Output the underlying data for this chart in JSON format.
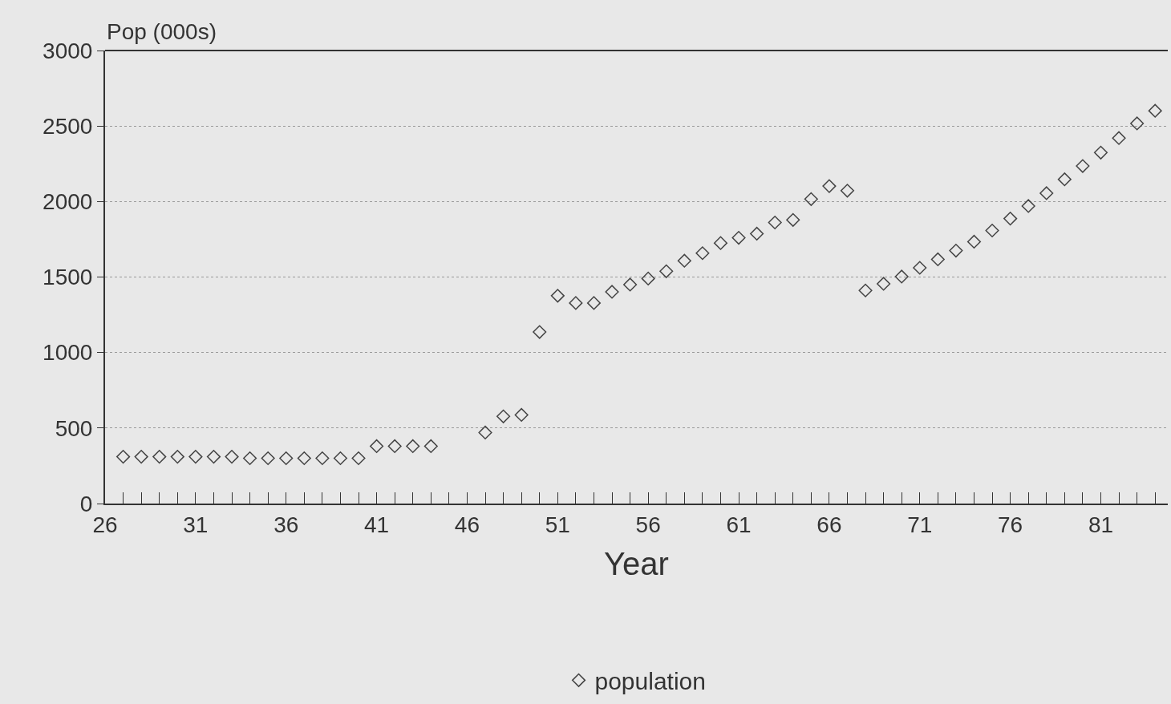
{
  "chart_data": {
    "type": "scatter",
    "xlabel": "Year",
    "ylabel": "Pop (000s)",
    "x": [
      27,
      28,
      29,
      30,
      31,
      32,
      33,
      34,
      35,
      36,
      37,
      38,
      39,
      40,
      41,
      42,
      43,
      44,
      47,
      48,
      49,
      50,
      51,
      52,
      53,
      54,
      55,
      56,
      57,
      58,
      59,
      60,
      61,
      62,
      63,
      64,
      65,
      66,
      67,
      68,
      69,
      70,
      71,
      72,
      73,
      74,
      75,
      76,
      77,
      78,
      79,
      80,
      81,
      82,
      83,
      84
    ],
    "series": [
      {
        "name": "population",
        "color": "#444444",
        "values": [
          310,
          310,
          310,
          310,
          310,
          310,
          310,
          300,
          300,
          300,
          300,
          300,
          300,
          300,
          380,
          380,
          380,
          380,
          470,
          577,
          587,
          1136,
          1376,
          1328,
          1328,
          1402,
          1450,
          1490,
          1538,
          1608,
          1658,
          1725,
          1760,
          1787,
          1861,
          1878,
          2016,
          2102,
          2072,
          1411,
          1455,
          1503,
          1561,
          1617,
          1675,
          1734,
          1808,
          1887,
          1970,
          2055,
          2147,
          2235,
          2324,
          2420,
          2517,
          2601
        ]
      }
    ],
    "xlim": [
      26,
      84.7
    ],
    "xticks": [
      26,
      {
        "value": 27,
        "label": null
      },
      {
        "value": 28,
        "label": null
      },
      {
        "value": 29,
        "label": null
      },
      {
        "value": 30,
        "label": null
      },
      31,
      {
        "value": 32,
        "label": null
      },
      {
        "value": 33,
        "label": null
      },
      {
        "value": 34,
        "label": null
      },
      {
        "value": 35,
        "label": null
      },
      36,
      {
        "value": 37,
        "label": null
      },
      {
        "value": 38,
        "label": null
      },
      {
        "value": 39,
        "label": null
      },
      {
        "value": 40,
        "label": null
      },
      41,
      {
        "value": 42,
        "label": null
      },
      {
        "value": 43,
        "label": null
      },
      {
        "value": 44,
        "label": null
      },
      {
        "value": 45,
        "label": null
      },
      46,
      {
        "value": 47,
        "label": null
      },
      {
        "value": 48,
        "label": null
      },
      {
        "value": 49,
        "label": null
      },
      {
        "value": 50,
        "label": null
      },
      51,
      {
        "value": 52,
        "label": null
      },
      {
        "value": 53,
        "label": null
      },
      {
        "value": 54,
        "label": null
      },
      {
        "value": 55,
        "label": null
      },
      56,
      {
        "value": 57,
        "label": null
      },
      {
        "value": 58,
        "label": null
      },
      {
        "value": 59,
        "label": null
      },
      {
        "value": 60,
        "label": null
      },
      61,
      {
        "value": 62,
        "label": null
      },
      {
        "value": 63,
        "label": null
      },
      {
        "value": 64,
        "label": null
      },
      {
        "value": 65,
        "label": null
      },
      66,
      {
        "value": 67,
        "label": null
      },
      {
        "value": 68,
        "label": null
      },
      {
        "value": 69,
        "label": null
      },
      {
        "value": 70,
        "label": null
      },
      71,
      {
        "value": 72,
        "label": null
      },
      {
        "value": 73,
        "label": null
      },
      {
        "value": 74,
        "label": null
      },
      {
        "value": 75,
        "label": null
      },
      76,
      {
        "value": 77,
        "label": null
      },
      {
        "value": 78,
        "label": null
      },
      {
        "value": 79,
        "label": null
      },
      {
        "value": 80,
        "label": null
      },
      81,
      {
        "value": 82,
        "label": null
      },
      {
        "value": 83,
        "label": null
      },
      {
        "value": 84,
        "label": null
      }
    ],
    "ylim": [
      0,
      3000
    ],
    "yticks": [
      0,
      500,
      1000,
      1500,
      2000,
      2500,
      3000
    ],
    "grid": "y",
    "legend": "bottom",
    "marker": "diamond"
  }
}
